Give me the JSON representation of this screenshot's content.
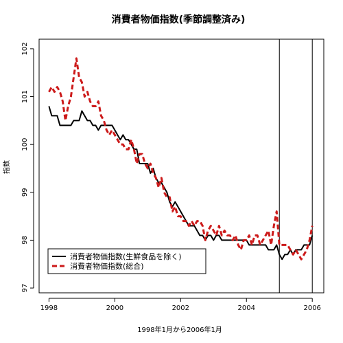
{
  "chart_data": {
    "type": "line",
    "title": "消費者物価指数(季節調整済み)",
    "xlabel": "1998年1月から2006年1月",
    "ylabel": "指数",
    "xlim": [
      1997.7,
      2006.35
    ],
    "ylim": [
      96.9,
      102.2
    ],
    "xticks": [
      1998,
      2000,
      2002,
      2004,
      2006
    ],
    "xtick_labels": [
      "1998",
      "2000",
      "2002",
      "2004",
      "2006"
    ],
    "yticks": [
      97,
      98,
      99,
      100,
      101,
      102
    ],
    "ytick_labels": [
      "97",
      "98",
      "99",
      "100",
      "101",
      "102"
    ],
    "vlines": [
      2005.0,
      2006.0
    ],
    "legend_position": "bottom-left",
    "series": [
      {
        "name": "消費者物価指数(生鮮食品を除く)",
        "style": "solid",
        "color": "#000000",
        "x": [
          1998.0,
          1998.083,
          1998.167,
          1998.25,
          1998.333,
          1998.417,
          1998.5,
          1998.583,
          1998.667,
          1998.75,
          1998.833,
          1998.917,
          1999.0,
          1999.083,
          1999.167,
          1999.25,
          1999.333,
          1999.417,
          1999.5,
          1999.583,
          1999.667,
          1999.75,
          1999.833,
          1999.917,
          2000.0,
          2000.083,
          2000.167,
          2000.25,
          2000.333,
          2000.417,
          2000.5,
          2000.583,
          2000.667,
          2000.75,
          2000.833,
          2000.917,
          2001.0,
          2001.083,
          2001.167,
          2001.25,
          2001.333,
          2001.417,
          2001.5,
          2001.583,
          2001.667,
          2001.75,
          2001.833,
          2001.917,
          2002.0,
          2002.083,
          2002.167,
          2002.25,
          2002.333,
          2002.417,
          2002.5,
          2002.583,
          2002.667,
          2002.75,
          2002.833,
          2002.917,
          2003.0,
          2003.083,
          2003.167,
          2003.25,
          2003.333,
          2003.417,
          2003.5,
          2003.583,
          2003.667,
          2003.75,
          2003.833,
          2003.917,
          2004.0,
          2004.083,
          2004.167,
          2004.25,
          2004.333,
          2004.417,
          2004.5,
          2004.583,
          2004.667,
          2004.75,
          2004.833,
          2004.917,
          2005.0,
          2005.083,
          2005.167,
          2005.25,
          2005.333,
          2005.417,
          2005.5,
          2005.583,
          2005.667,
          2005.75,
          2005.833,
          2005.917,
          2006.0
        ],
        "values": [
          100.8,
          100.6,
          100.6,
          100.6,
          100.4,
          100.4,
          100.4,
          100.4,
          100.4,
          100.5,
          100.5,
          100.5,
          100.7,
          100.6,
          100.5,
          100.5,
          100.4,
          100.4,
          100.3,
          100.4,
          100.4,
          100.4,
          100.4,
          100.4,
          100.3,
          100.2,
          100.1,
          100.2,
          100.1,
          100.1,
          100.0,
          99.9,
          99.9,
          99.6,
          99.6,
          99.6,
          99.6,
          99.4,
          99.5,
          99.3,
          99.2,
          99.2,
          99.1,
          99.0,
          98.8,
          98.7,
          98.8,
          98.7,
          98.6,
          98.5,
          98.4,
          98.3,
          98.3,
          98.3,
          98.2,
          98.1,
          98.1,
          98.0,
          98.1,
          98.1,
          98.0,
          98.1,
          98.1,
          98.0,
          98.0,
          98.0,
          98.0,
          98.0,
          98.0,
          98.0,
          98.0,
          98.0,
          98.0,
          97.9,
          97.9,
          97.9,
          97.9,
          97.9,
          97.9,
          97.9,
          97.8,
          97.8,
          97.8,
          97.9,
          97.7,
          97.6,
          97.7,
          97.7,
          97.8,
          97.7,
          97.8,
          97.8,
          97.8,
          97.9,
          97.9,
          97.9,
          98.1
        ]
      },
      {
        "name": "消費者物価指数(総合)",
        "style": "dashed",
        "color": "#cc1a1a",
        "x": [
          1998.0,
          1998.083,
          1998.167,
          1998.25,
          1998.333,
          1998.417,
          1998.5,
          1998.583,
          1998.667,
          1998.75,
          1998.833,
          1998.917,
          1999.0,
          1999.083,
          1999.167,
          1999.25,
          1999.333,
          1999.417,
          1999.5,
          1999.583,
          1999.667,
          1999.75,
          1999.833,
          1999.917,
          2000.0,
          2000.083,
          2000.167,
          2000.25,
          2000.333,
          2000.417,
          2000.5,
          2000.583,
          2000.667,
          2000.75,
          2000.833,
          2000.917,
          2001.0,
          2001.083,
          2001.167,
          2001.25,
          2001.333,
          2001.417,
          2001.5,
          2001.583,
          2001.667,
          2001.75,
          2001.833,
          2001.917,
          2002.0,
          2002.083,
          2002.167,
          2002.25,
          2002.333,
          2002.417,
          2002.5,
          2002.583,
          2002.667,
          2002.75,
          2002.833,
          2002.917,
          2003.0,
          2003.083,
          2003.167,
          2003.25,
          2003.333,
          2003.417,
          2003.5,
          2003.583,
          2003.667,
          2003.75,
          2003.833,
          2003.917,
          2004.0,
          2004.083,
          2004.167,
          2004.25,
          2004.333,
          2004.417,
          2004.5,
          2004.583,
          2004.667,
          2004.75,
          2004.833,
          2004.917,
          2005.0,
          2005.083,
          2005.167,
          2005.25,
          2005.333,
          2005.417,
          2005.5,
          2005.583,
          2005.667,
          2005.75,
          2005.833,
          2005.917,
          2006.0
        ],
        "values": [
          101.1,
          101.2,
          101.1,
          101.2,
          101.1,
          100.9,
          100.5,
          100.8,
          101.0,
          101.4,
          101.8,
          101.4,
          101.3,
          101.0,
          101.1,
          100.9,
          100.8,
          100.8,
          100.9,
          100.6,
          100.5,
          100.3,
          100.2,
          100.3,
          100.2,
          100.1,
          100.0,
          100.0,
          99.9,
          99.9,
          100.1,
          99.9,
          99.6,
          99.8,
          99.8,
          99.6,
          99.5,
          99.6,
          99.4,
          99.3,
          99.1,
          99.3,
          99.0,
          98.9,
          98.9,
          98.6,
          98.7,
          98.5,
          98.5,
          98.4,
          98.4,
          98.3,
          98.4,
          98.3,
          98.4,
          98.4,
          98.3,
          98.0,
          98.2,
          98.3,
          98.2,
          98.1,
          98.3,
          98.1,
          98.2,
          98.1,
          98.1,
          98.0,
          98.1,
          97.9,
          97.8,
          98.0,
          98.0,
          98.1,
          97.9,
          98.1,
          98.1,
          97.9,
          98.0,
          98.1,
          98.2,
          97.9,
          98.3,
          98.6,
          97.9,
          97.9,
          97.9,
          97.9,
          97.8,
          97.7,
          97.8,
          97.7,
          97.6,
          97.7,
          97.8,
          98.0,
          98.3
        ]
      }
    ]
  }
}
